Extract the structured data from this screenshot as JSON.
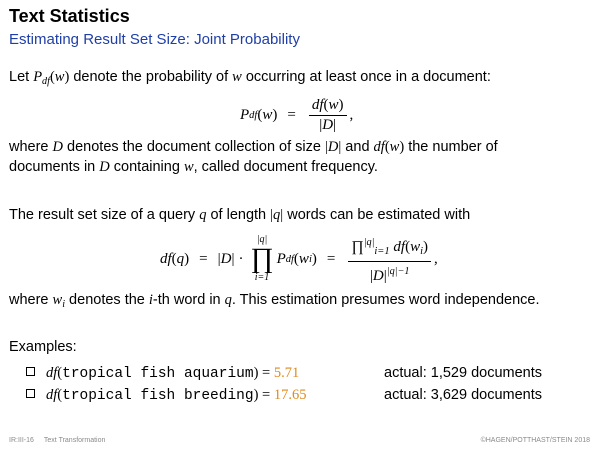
{
  "header": {
    "title": "Text Statistics",
    "subtitle": "Estimating Result Set Size: Joint Probability"
  },
  "paragraphs": {
    "p1_before": "Let ",
    "p1_after": " denote the probability of ",
    "p1_end": " occurring at least once in a document:",
    "p2_where": "where ",
    "p2_a": " denotes the document collection of size ",
    "p2_b": " and ",
    "p2_c": " the number of",
    "p2_line2_a": "documents in ",
    "p2_line2_b": " containing ",
    "p2_line2_c": ", called document frequency.",
    "p3": "The result set size of a query ",
    "p3_b": " of length ",
    "p3_c": " words can be estimated with",
    "p4_a": "where ",
    "p4_b": " denotes the ",
    "p4_c": "-th word in ",
    "p4_d": ". This estimation presumes word independence.",
    "p5": "Examples:"
  },
  "math": {
    "P": "P",
    "df_sub": "df",
    "w": "w",
    "D": "D",
    "df": "df",
    "q": "q",
    "i": "i",
    "wi_w": "w",
    "wi_i": "i",
    "open": "(",
    "close": ")",
    "bar": "|",
    "equals": "=",
    "comma": ",",
    "cdot": "·",
    "prod": "∏",
    "prod_upper": "|q|",
    "prod_lower": "i=1",
    "pow_exp": "|q|−1"
  },
  "examples": [
    {
      "query": "tropical fish aquarium",
      "value": "5.71",
      "actual": "actual: 1,529 documents"
    },
    {
      "query": "tropical fish breeding",
      "value": "17.65",
      "actual": "actual: 3,629 documents"
    }
  ],
  "footer": {
    "slide_id": "IR:III-16",
    "topic": "Text Transformation",
    "copyright": "©HAGEN/POTTHAST/STEIN 2018"
  },
  "colors": {
    "subtitle": "#1f3fa8",
    "highlight": "#e08a1a",
    "footer": "#8a8a8a"
  }
}
